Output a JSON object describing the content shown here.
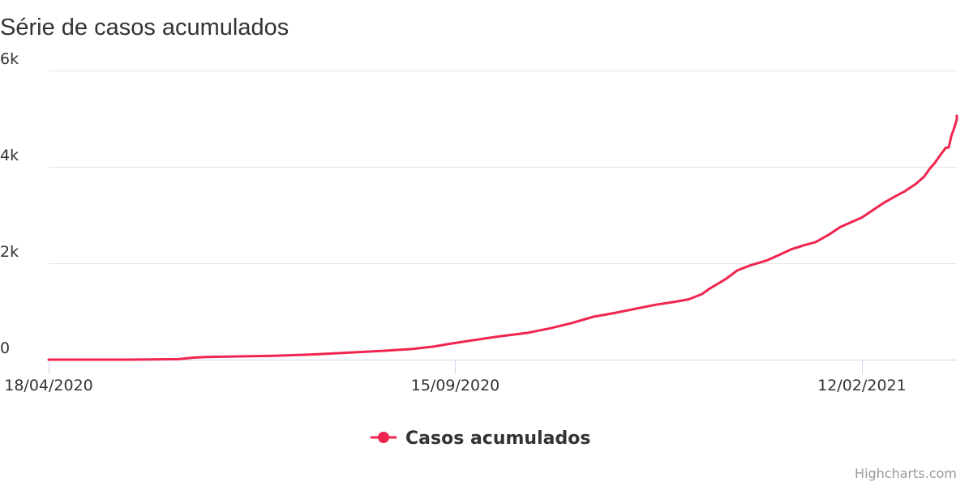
{
  "chart_data": {
    "type": "line",
    "title": "Série de casos acumulados",
    "credits": "Highcharts.com",
    "series_color": "#f0254f",
    "grid": true,
    "legend_position": "bottom-center",
    "y_axis": {
      "min": 0,
      "max": 6000,
      "ticks": [
        {
          "value": 0,
          "label": "0"
        },
        {
          "value": 2000,
          "label": "2k"
        },
        {
          "value": 4000,
          "label": "4k"
        },
        {
          "value": 6000,
          "label": "6k"
        }
      ]
    },
    "x_axis": {
      "min": "2020-04-18",
      "max": "2021-03-19",
      "ticks": [
        {
          "date": "2020-04-18",
          "label": "18/04/2020"
        },
        {
          "date": "2020-09-15",
          "label": "15/09/2020"
        },
        {
          "date": "2021-02-12",
          "label": "12/02/2021"
        }
      ]
    },
    "series": [
      {
        "name": "Casos acumulados",
        "points": [
          [
            "2020-04-18",
            0
          ],
          [
            "2020-05-18",
            0
          ],
          [
            "2020-06-05",
            10
          ],
          [
            "2020-06-10",
            40
          ],
          [
            "2020-06-15",
            55
          ],
          [
            "2020-06-25",
            65
          ],
          [
            "2020-07-10",
            80
          ],
          [
            "2020-07-25",
            110
          ],
          [
            "2020-08-08",
            150
          ],
          [
            "2020-08-20",
            185
          ],
          [
            "2020-08-30",
            220
          ],
          [
            "2020-09-07",
            270
          ],
          [
            "2020-09-12",
            320
          ],
          [
            "2020-09-20",
            390
          ],
          [
            "2020-10-01",
            480
          ],
          [
            "2020-10-12",
            560
          ],
          [
            "2020-10-20",
            650
          ],
          [
            "2020-10-28",
            760
          ],
          [
            "2020-11-05",
            890
          ],
          [
            "2020-11-12",
            960
          ],
          [
            "2020-11-20",
            1050
          ],
          [
            "2020-11-28",
            1140
          ],
          [
            "2020-12-05",
            1200
          ],
          [
            "2020-12-10",
            1250
          ],
          [
            "2020-12-15",
            1360
          ],
          [
            "2020-12-18",
            1480
          ],
          [
            "2020-12-21",
            1580
          ],
          [
            "2020-12-24",
            1680
          ],
          [
            "2020-12-28",
            1850
          ],
          [
            "2021-01-02",
            1960
          ],
          [
            "2021-01-08",
            2060
          ],
          [
            "2021-01-12",
            2160
          ],
          [
            "2021-01-17",
            2290
          ],
          [
            "2021-01-22",
            2380
          ],
          [
            "2021-01-26",
            2440
          ],
          [
            "2021-01-31",
            2600
          ],
          [
            "2021-02-04",
            2750
          ],
          [
            "2021-02-08",
            2850
          ],
          [
            "2021-02-12",
            2950
          ],
          [
            "2021-02-16",
            3100
          ],
          [
            "2021-02-20",
            3250
          ],
          [
            "2021-02-24",
            3380
          ],
          [
            "2021-02-28",
            3500
          ],
          [
            "2021-03-04",
            3650
          ],
          [
            "2021-03-07",
            3800
          ],
          [
            "2021-03-09",
            3960
          ],
          [
            "2021-03-11",
            4090
          ],
          [
            "2021-03-13",
            4250
          ],
          [
            "2021-03-15",
            4400
          ],
          [
            "2021-03-16",
            4400
          ],
          [
            "2021-03-17",
            4640
          ],
          [
            "2021-03-18",
            4800
          ],
          [
            "2021-03-19",
            4980
          ],
          [
            "2021-03-19",
            5060
          ]
        ]
      }
    ]
  }
}
